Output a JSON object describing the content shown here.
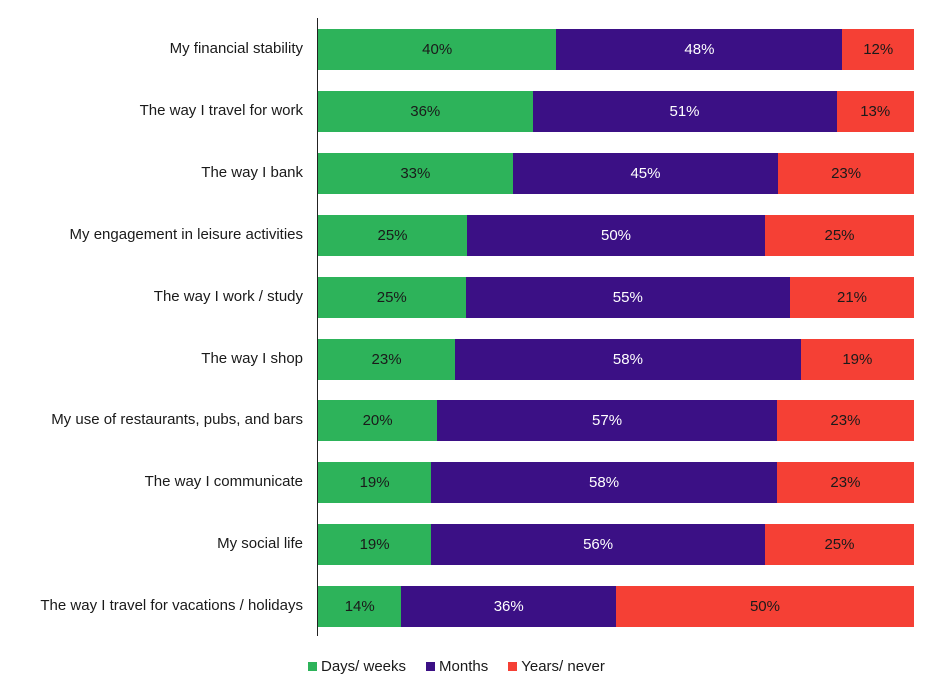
{
  "chart_data": {
    "type": "bar",
    "orientation": "horizontal",
    "stacked": "100%",
    "title": "",
    "xlabel": "",
    "ylabel": "",
    "xlim": [
      0,
      100
    ],
    "grid": false,
    "legend_position": "bottom",
    "categories": [
      "My financial stability",
      "The way I travel for work",
      "The way I bank",
      "My engagement in leisure activities",
      "The way I work / study",
      "The way I shop",
      "My use of restaurants, pubs, and bars",
      "The way I communicate",
      "My social life",
      "The way I travel for vacations / holidays"
    ],
    "series": [
      {
        "name": "Days/ weeks",
        "color": "#2db35a",
        "label_color": "#1a1a1a",
        "values": [
          40,
          36,
          33,
          25,
          25,
          23,
          20,
          19,
          19,
          14
        ]
      },
      {
        "name": "Months",
        "color": "#3b1085",
        "label_color": "#ffffff",
        "values": [
          48,
          51,
          45,
          50,
          55,
          58,
          57,
          58,
          56,
          36
        ]
      },
      {
        "name": "Years/ never",
        "color": "#f54035",
        "label_color": "#1a1a1a",
        "values": [
          12,
          13,
          23,
          25,
          21,
          19,
          23,
          23,
          25,
          50
        ]
      }
    ],
    "value_suffix": "%"
  }
}
